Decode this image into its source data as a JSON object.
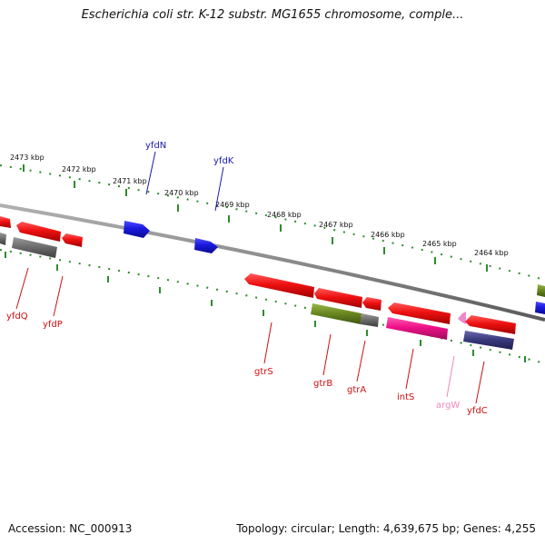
{
  "title": "Escherichia coli str. K-12 substr. MG1655 chromosome, comple...",
  "colors": {
    "backbone": "#8a8a8a",
    "tick": "#2e8b2e",
    "cds": "#ee1111",
    "cds_reverse_grey": "#707070",
    "gene_blue": "#1a1ae0",
    "gene_olive": "#6b8a22",
    "gene_pink": "#ee1188",
    "gene_navy": "#3b3b80",
    "trna_pink": "#ee88cc",
    "label_red": "#cc1111",
    "label_blue": "#1a1aaa",
    "label_pink": "#ee88bb"
  },
  "kbp_labels": [
    {
      "id": "2473",
      "text": "2473 kbp"
    },
    {
      "id": "2472",
      "text": "2472 kbp"
    },
    {
      "id": "2471",
      "text": "2471 kbp"
    },
    {
      "id": "2470",
      "text": "2470 kbp"
    },
    {
      "id": "2469",
      "text": "2469 kbp"
    },
    {
      "id": "2468",
      "text": "2468 kbp"
    },
    {
      "id": "2467",
      "text": "2467 kbp"
    },
    {
      "id": "2466",
      "text": "2466 kbp"
    },
    {
      "id": "2465",
      "text": "2465 kbp"
    },
    {
      "id": "2464",
      "text": "2464 kbp"
    }
  ],
  "gene_labels": [
    {
      "id": "yfdN",
      "text": "yfdN",
      "color": "label_blue"
    },
    {
      "id": "yfdK",
      "text": "yfdK",
      "color": "label_blue"
    },
    {
      "id": "yfdQ",
      "text": "yfdQ",
      "color": "label_red"
    },
    {
      "id": "yfdP",
      "text": "yfdP",
      "color": "label_red"
    },
    {
      "id": "gtrS",
      "text": "gtrS",
      "color": "label_red"
    },
    {
      "id": "gtrB",
      "text": "gtrB",
      "color": "label_red"
    },
    {
      "id": "gtrA",
      "text": "gtrA",
      "color": "label_red"
    },
    {
      "id": "intS",
      "text": "intS",
      "color": "label_red"
    },
    {
      "id": "argW",
      "text": "argW",
      "color": "label_pink"
    },
    {
      "id": "yfdC",
      "text": "yfdC",
      "color": "label_red"
    }
  ],
  "footer": {
    "accession": "Accession: NC_000913",
    "summary": "Topology: circular; Length: 4,639,675 bp; Genes: 4,255"
  }
}
